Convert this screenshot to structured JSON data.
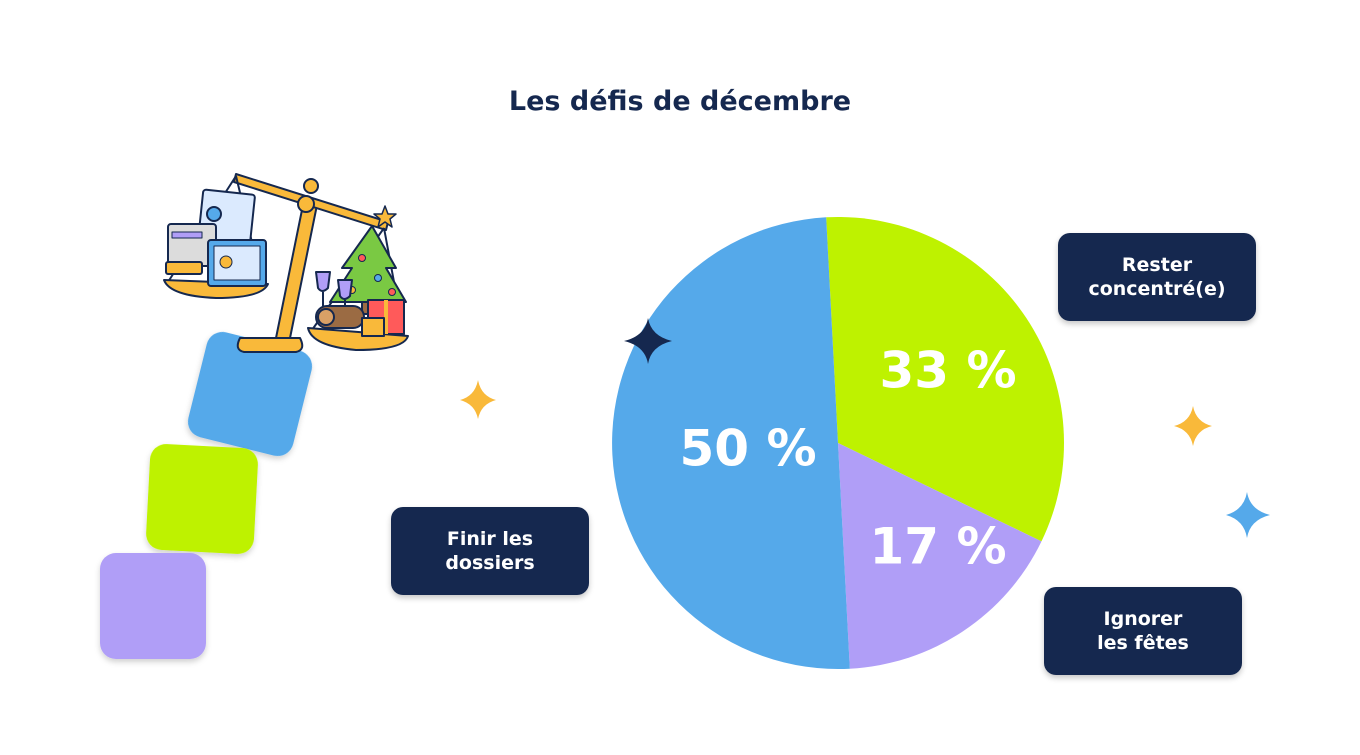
{
  "title": "Les défis de décembre",
  "chart_data": {
    "type": "pie",
    "title": "Les défis de décembre",
    "slices": [
      {
        "label": "Rester concentré(e)",
        "value": 33,
        "display": "33 %",
        "color": "#bef200"
      },
      {
        "label": "Ignorer les fêtes",
        "value": 17,
        "display": "17 %",
        "color": "#b09ef7"
      },
      {
        "label": "Finir les dossiers",
        "value": 50,
        "display": "50 %",
        "color": "#55a9ea"
      }
    ]
  },
  "callouts": {
    "rester": "Rester\nconcentré(e)",
    "ignorer": "Ignorer\nles fêtes",
    "finir": "Finir les\ndossiers"
  },
  "colors": {
    "navy": "#15284f",
    "blue": "#55a9ea",
    "lime": "#bef200",
    "lavender": "#b09ef7",
    "gold": "#f9b93a"
  },
  "decorations": {
    "illustration": "balance-scale-work-vs-christmas-illustration",
    "stars": [
      "gold-sparkle-icon",
      "navy-sparkle-icon",
      "blue-sparkle-icon"
    ]
  }
}
